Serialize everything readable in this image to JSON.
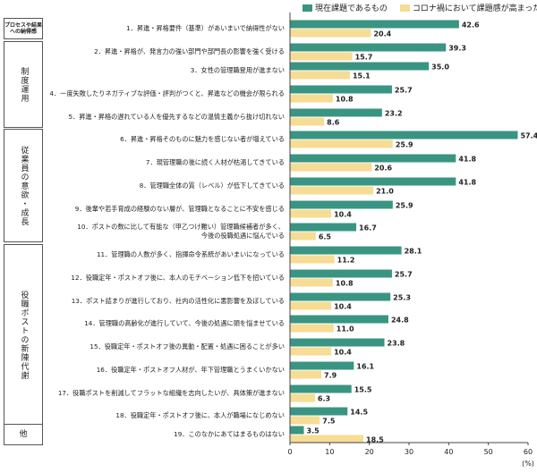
{
  "colors": {
    "current": "#3a9482",
    "covid": "#f6dc94"
  },
  "legend": {
    "current": "現在課題であるもの",
    "covid": "コロナ禍において課題感が高まったもの"
  },
  "groups": [
    {
      "label": "プロセスや結果への納得感",
      "small": true,
      "vertical": false,
      "start": 0,
      "end": 0
    },
    {
      "label": "制度運用",
      "small": false,
      "vertical": true,
      "start": 1,
      "end": 4
    },
    {
      "label": "従業員の意欲・成長",
      "small": false,
      "vertical": true,
      "start": 5,
      "end": 9
    },
    {
      "label": "役職ポストの新陳代謝",
      "small": false,
      "vertical": true,
      "start": 10,
      "end": 17
    },
    {
      "label": "他",
      "small": false,
      "vertical": false,
      "start": 18,
      "end": 18
    }
  ],
  "chart_data": {
    "type": "bar",
    "orientation": "horizontal",
    "categories": [
      "1．昇進・昇格要件（基準）があいまいで納得性がない",
      "2．昇進・昇格が、発言力の強い部門や部門長の影響を強く受ける",
      "3．女性の管理職登用が進まない",
      "4．一度失敗したりネガティブな評価・評判がつくと、昇進などの機会が限られる",
      "5．昇進・昇格の遅れている人を優先するなどの温情主義から抜け切れない",
      "6．昇進・昇格そのものに魅力を感じない者が増えている",
      "7．現管理職の後に続く人材が枯渇してきている",
      "8．管理職全体の質（レベル）が低下してきている",
      "9．後輩や若手育成の経験のない層が、管理職となることに不安を感じる",
      "10．ポストの数に比して有能な（甲乙つけ難い）管理職候補者が多く、\n今後の役職処遇に悩んでいる",
      "11．管理職の人数が多く、指揮命令系統があいまいになっている",
      "12．役職定年・ポストオフ後に、本人のモチベーション低下を招いている",
      "13．ポスト詰まりが進行しており、社内の活性化に悪影響を及ぼしている",
      "14．管理職の高齢化が進行していて、今後の処遇に頭を悩ませている",
      "15．役職定年・ポストオフ後の異動・配置・処遇に困ることが多い",
      "16．役職定年・ポストオフ人材が、年下管理職とうまくいかない",
      "17．役職ポストを削減してフラットな組織を志向したいが、具体策が進まない",
      "18．役職定年・ポストオフ後に、本人が職場になじめない",
      "19．このなかにあてはまるものはない"
    ],
    "series": [
      {
        "name": "現在課題であるもの",
        "values": [
          42.6,
          39.3,
          35.0,
          25.7,
          23.2,
          57.4,
          41.8,
          41.8,
          25.9,
          16.7,
          28.1,
          25.7,
          25.3,
          24.8,
          23.8,
          16.1,
          15.5,
          14.5,
          3.5
        ]
      },
      {
        "name": "コロナ禍において課題感が高まったもの",
        "values": [
          20.4,
          15.7,
          15.1,
          10.8,
          8.6,
          25.9,
          20.6,
          21.0,
          10.4,
          6.5,
          11.2,
          10.8,
          10.4,
          11.0,
          10.4,
          7.9,
          6.3,
          7.5,
          18.5
        ]
      }
    ],
    "value_labels": [
      [
        "42.6",
        "39.3",
        "35.0",
        "25.7",
        "23.2",
        "57.4",
        "41.8",
        "41.8",
        "25.9",
        "16.7",
        "28.1",
        "25.7",
        "25.3",
        "24.8",
        "23.8",
        "16.1",
        "15.5",
        "14.5",
        "3.5"
      ],
      [
        "20.4",
        "15.7",
        "15.1",
        "10.8",
        "8.6",
        "25.9",
        "20.6",
        "21.0",
        "10.4",
        "6.5",
        "11.2",
        "10.8",
        "10.4",
        "11.0",
        "10.4",
        "7.9",
        "6.3",
        "7.5",
        "18.5"
      ]
    ],
    "xlim": [
      0,
      60
    ],
    "xticks": [
      0,
      10,
      20,
      30,
      40,
      50,
      60
    ],
    "xlabel": "(%)",
    "grid": false,
    "legend_position": "top-right"
  }
}
